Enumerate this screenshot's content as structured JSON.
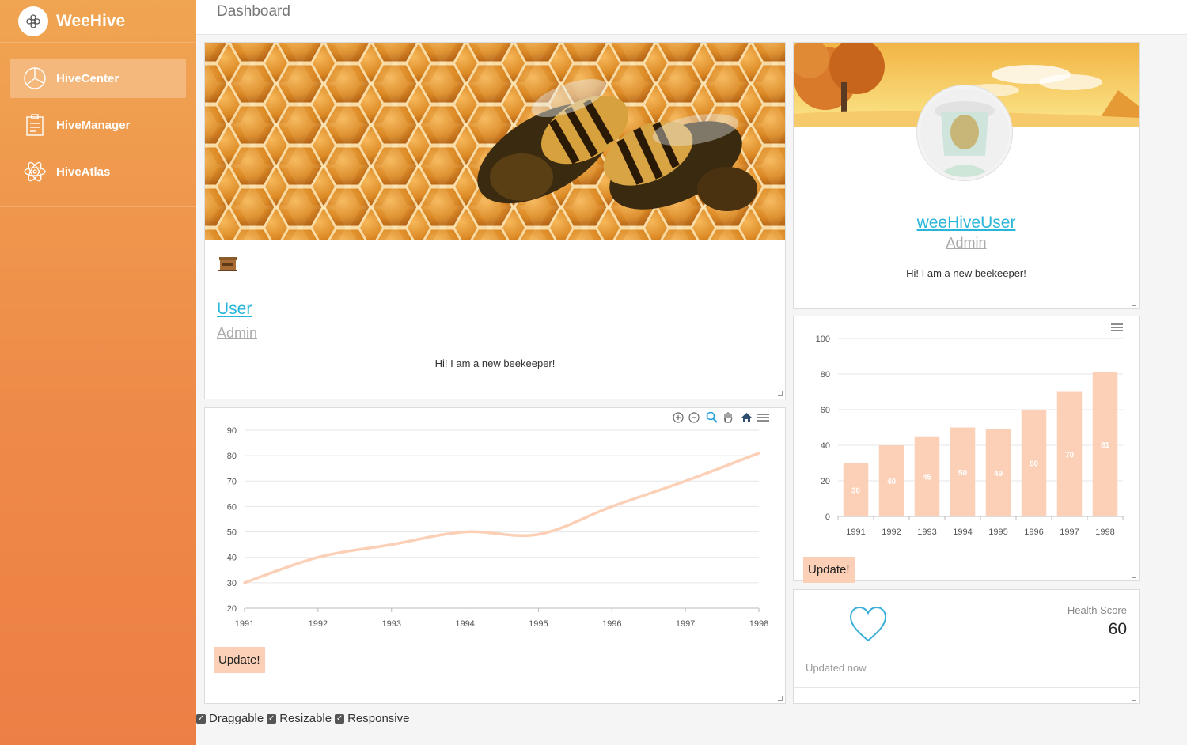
{
  "app": {
    "name": "WeeHive"
  },
  "sidebar": {
    "items": [
      {
        "label": "HiveCenter",
        "icon": "pie-chart-icon",
        "active": true
      },
      {
        "label": "HiveManager",
        "icon": "clipboard-icon",
        "active": false
      },
      {
        "label": "HiveAtlas",
        "icon": "atom-icon",
        "active": false
      }
    ]
  },
  "header": {
    "title": "Dashboard"
  },
  "user_card": {
    "name": "User",
    "role": "Admin",
    "bio": "Hi! I am a new beekeeper!"
  },
  "profile_card": {
    "name": "weeHiveUser",
    "role": "Admin",
    "bio": "Hi! I am a new beekeeper!"
  },
  "line_chart": {
    "update_label": "Update!",
    "toolbar": [
      "zoom-in-icon",
      "zoom-out-icon",
      "magnifier-icon",
      "hand-pan-icon",
      "home-icon",
      "menu-icon"
    ]
  },
  "bar_chart": {
    "update_label": "Update!"
  },
  "health_card": {
    "label": "Health Score",
    "value": "60",
    "updated": "Updated now"
  },
  "options": {
    "draggable": "Draggable",
    "resizable": "Resizable",
    "responsive": "Responsive"
  },
  "colors": {
    "accent": "#f0a552",
    "bar": "#fcd0b7",
    "line": "#fcd0b7",
    "link": "#29b6d9"
  },
  "chart_data": [
    {
      "type": "line",
      "x": [
        "1991",
        "1992",
        "1993",
        "1994",
        "1995",
        "1996",
        "1997",
        "1998"
      ],
      "series": [
        {
          "values": [
            30,
            40,
            45,
            50,
            49,
            60,
            70,
            81
          ]
        }
      ],
      "ylim": [
        20,
        90
      ],
      "yticks": [
        20,
        30,
        40,
        50,
        60,
        70,
        80,
        90
      ],
      "grid": true
    },
    {
      "type": "bar",
      "categories": [
        "1991",
        "1992",
        "1993",
        "1994",
        "1995",
        "1996",
        "1997",
        "1998"
      ],
      "values": [
        30,
        40,
        45,
        50,
        49,
        60,
        70,
        81
      ],
      "ylim": [
        0,
        100
      ],
      "yticks": [
        0,
        20,
        40,
        60,
        80,
        100
      ],
      "data_labels": true,
      "grid": true
    }
  ]
}
